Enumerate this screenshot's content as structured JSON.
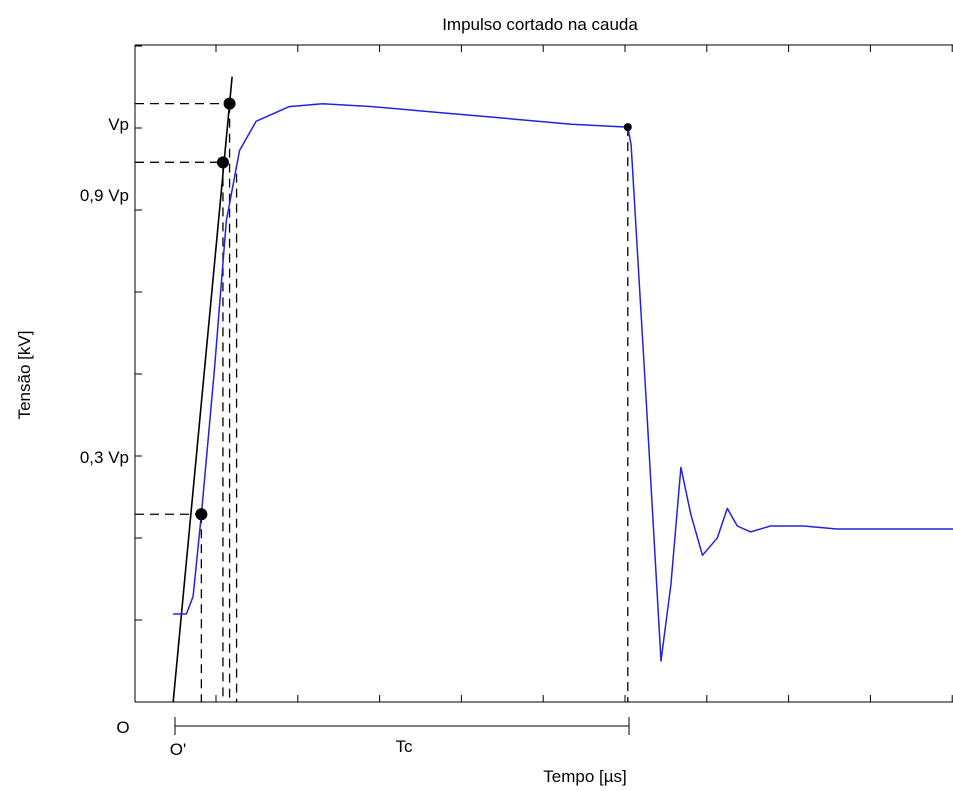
{
  "chart_data": {
    "type": "line",
    "title": "Impulso cortado na cauda",
    "xlabel": "Tempo [µs]",
    "ylabel": "Tensão [kV]",
    "grid": false,
    "colors": {
      "waveform": "#2222dd",
      "construction": "#000000",
      "points": "#000000"
    },
    "y_tick_labels": [
      "Vp",
      "0,9 Vp",
      "0,3 Vp"
    ],
    "annotations": {
      "origin": "O",
      "virtual_origin": "O'",
      "cut_interval": "Tc"
    },
    "x": [
      0,
      0.8,
      1.2,
      1.7,
      2.5,
      3.2,
      4,
      5,
      7,
      9,
      12,
      16,
      20,
      24,
      27.4,
      27.6,
      28.5,
      29.4,
      30,
      30.6,
      31.2,
      31.9,
      32.8,
      33.4,
      34,
      34.8,
      36,
      38,
      40,
      44,
      47
    ],
    "series": [
      {
        "values": [
          0.13,
          0.13,
          0.16,
          0.3,
          0.55,
          0.8,
          0.92,
          0.97,
          0.995,
          1.0,
          0.995,
          0.985,
          0.975,
          0.965,
          0.96,
          0.93,
          0.5,
          0.05,
          0.18,
          0.38,
          0.3,
          0.23,
          0.26,
          0.31,
          0.28,
          0.27,
          0.28,
          0.28,
          0.275,
          0.275,
          0.275
        ]
      }
    ],
    "marked_points": [
      {
        "label": "0,3 Vp",
        "x": 1.7,
        "y": 0.3
      },
      {
        "label": "0,9 Vp",
        "x": 3.0,
        "y": 0.9
      },
      {
        "label": "Vp",
        "x": 3.4,
        "y": 1.0
      },
      {
        "label": "cut",
        "x": 27.4,
        "y": 0.96
      }
    ],
    "front_line": {
      "x0": 0,
      "y0": -0.02,
      "x1": 3.4,
      "y1": 1.0
    },
    "xlim": [
      -2.3,
      47
    ],
    "ylim": [
      -0.02,
      1.1
    ]
  }
}
